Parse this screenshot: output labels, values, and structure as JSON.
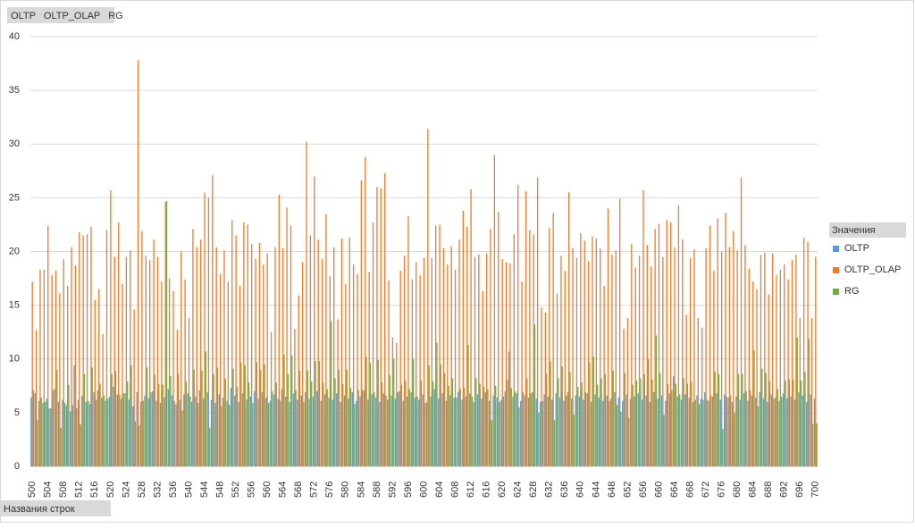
{
  "chart_data": {
    "type": "bar",
    "field_buttons": "OLTP   OLTP_OLAP   RG",
    "legend_title": "Значения",
    "row_label_button": "Названия строк",
    "legend": "right",
    "grid": true,
    "ylim": [
      0,
      40
    ],
    "yticks": [
      0,
      5,
      10,
      15,
      20,
      25,
      30,
      35,
      40
    ],
    "categories": [
      "500",
      null,
      null,
      null,
      "504",
      null,
      null,
      null,
      "508",
      null,
      null,
      null,
      "512",
      null,
      null,
      null,
      "516",
      null,
      null,
      null,
      "520",
      null,
      null,
      null,
      "524",
      null,
      null,
      null,
      "528",
      null,
      null,
      null,
      "532",
      null,
      null,
      null,
      "536",
      null,
      null,
      null,
      "540",
      null,
      null,
      null,
      "544",
      null,
      null,
      null,
      "548",
      null,
      null,
      null,
      "552",
      null,
      null,
      null,
      "556",
      null,
      null,
      null,
      "560",
      null,
      null,
      null,
      "564",
      null,
      null,
      null,
      "568",
      null,
      null,
      null,
      "572",
      null,
      null,
      null,
      "576",
      null,
      null,
      null,
      "580",
      null,
      null,
      null,
      "584",
      null,
      null,
      null,
      "588",
      null,
      null,
      null,
      "592",
      null,
      null,
      null,
      "596",
      null,
      null,
      null,
      "600",
      null,
      null,
      null,
      "604",
      null,
      null,
      null,
      "608",
      null,
      null,
      null,
      "612",
      null,
      null,
      null,
      "616",
      null,
      null,
      null,
      "620",
      null,
      null,
      null,
      "624",
      null,
      null,
      null,
      "628",
      null,
      null,
      null,
      "632",
      null,
      null,
      null,
      "636",
      null,
      null,
      null,
      "640",
      null,
      null,
      null,
      "644",
      null,
      null,
      null,
      "648",
      null,
      null,
      null,
      "652",
      null,
      null,
      null,
      "656",
      null,
      null,
      null,
      "660",
      null,
      null,
      null,
      "664",
      null,
      null,
      null,
      "668",
      null,
      null,
      null,
      "672",
      null,
      null,
      null,
      "676",
      null,
      null,
      null,
      "680",
      null,
      null,
      null,
      "684",
      null,
      null,
      null,
      "688",
      null,
      null,
      null,
      "692",
      null,
      null,
      null,
      "696",
      null,
      null,
      null,
      "700"
    ],
    "series": [
      {
        "name": "OLTP",
        "color": "#5b9bd5",
        "values": [
          6.4,
          6.8,
          6.1,
          5.9,
          6.3,
          5.4,
          7.2,
          6.0,
          6.2,
          5.7,
          5.1,
          9.4,
          6.2,
          6.6,
          6.0,
          5.8,
          6.9,
          7.1,
          6.4,
          6.1,
          6.5,
          7.4,
          6.7,
          6.3,
          6.8,
          6.2,
          5.6,
          6.9,
          6.0,
          6.6,
          6.3,
          7.0,
          6.1,
          5.9,
          6.4,
          7.2,
          6.6,
          5.8,
          6.2,
          6.7,
          6.8,
          6.0,
          6.5,
          7.1,
          6.3,
          6.9,
          6.2,
          5.9,
          6.7,
          6.4,
          6.1,
          7.3,
          6.6,
          6.0,
          6.8,
          6.2,
          6.5,
          7.0,
          6.3,
          6.9,
          6.4,
          6.1,
          6.7,
          6.3,
          7.2,
          6.5,
          6.0,
          6.8,
          6.2,
          6.6,
          6.9,
          6.3,
          6.5,
          7.0,
          6.1,
          6.7,
          6.4,
          6.2,
          6.8,
          6.0,
          6.6,
          6.3,
          6.9,
          6.1,
          6.5,
          7.1,
          6.2,
          6.7,
          6.4,
          6.0,
          6.8,
          6.2,
          6.6,
          6.3,
          7.0,
          6.1,
          6.5,
          6.9,
          6.4,
          6.2,
          6.7,
          6.0,
          6.5,
          7.2,
          6.3,
          6.8,
          6.1,
          6.6,
          6.4,
          6.9,
          6.2,
          6.5,
          6.8,
          6.0,
          6.7,
          6.3,
          6.9,
          6.1,
          6.6,
          6.4,
          6.2,
          7.0,
          10.7,
          6.5,
          6.8,
          6.1,
          6.6,
          6.4,
          6.9,
          6.3,
          6.0,
          6.7,
          6.5,
          6.2,
          6.8,
          6.4,
          6.1,
          6.9,
          6.3,
          6.6,
          6.5,
          6.2,
          6.8,
          6.0,
          6.7,
          6.4,
          6.1,
          6.6,
          6.3,
          6.9,
          6.4,
          6.1,
          6.7,
          6.3,
          6.5,
          6.8,
          6.2,
          6.6,
          6.0,
          6.9,
          6.3,
          6.6,
          6.1,
          6.8,
          8.4,
          6.5,
          6.2,
          6.7,
          6.4,
          6.0,
          6.6,
          6.3,
          6.9,
          6.1,
          6.5,
          6.8,
          6.2,
          6.7,
          6.4,
          6.0,
          6.5,
          6.2,
          6.8,
          6.1,
          6.6,
          6.4,
          6.9,
          6.3,
          6.0,
          6.7,
          6.4,
          6.1,
          6.8,
          6.3,
          6.5,
          6.2,
          6.9,
          6.6,
          6.0,
          6.7,
          6.3
        ]
      },
      {
        "name": "OLTP_OLAP",
        "color": "#ed7d31",
        "values": [
          17.2,
          12.7,
          18.3,
          18.3,
          22.4,
          17.8,
          18.2,
          16.1,
          19.3,
          16.8,
          20.4,
          18.7,
          21.8,
          21.5,
          21.6,
          22.3,
          15.5,
          16.5,
          12.3,
          22.0,
          25.7,
          19.5,
          22.7,
          17.0,
          19.5,
          20.1,
          14.6,
          37.8,
          21.9,
          19.6,
          19.2,
          21.1,
          19.5,
          17.2,
          24.6,
          17.5,
          16.3,
          12.7,
          20.0,
          17.4,
          13.8,
          22.1,
          20.4,
          21.1,
          25.5,
          25.0,
          27.1,
          20.4,
          17.9,
          20.1,
          17.2,
          22.9,
          21.5,
          16.8,
          22.7,
          22.5,
          20.7,
          19.3,
          20.8,
          18.8,
          19.8,
          12.5,
          20.4,
          25.3,
          20.3,
          24.1,
          22.4,
          12.8,
          15.9,
          19.0,
          30.2,
          21.5,
          27.0,
          21.1,
          19.3,
          23.5,
          17.7,
          20.4,
          13.7,
          21.2,
          17.0,
          21.3,
          18.8,
          17.9,
          26.6,
          28.8,
          18.1,
          22.7,
          26.0,
          25.9,
          27.3,
          17.3,
          12.0,
          11.5,
          18.2,
          19.6,
          23.3,
          17.4,
          19.0,
          17.8,
          19.4,
          31.4,
          19.4,
          22.4,
          22.5,
          20.3,
          18.8,
          20.5,
          18.3,
          21.1,
          23.8,
          22.3,
          25.8,
          19.5,
          19.7,
          16.3,
          19.8,
          22.1,
          29.0,
          23.7,
          19.3,
          19.0,
          18.9,
          21.6,
          26.2,
          17.2,
          25.6,
          22.0,
          21.6,
          26.9,
          14.8,
          14.3,
          22.2,
          23.6,
          16.1,
          19.6,
          18.2,
          25.5,
          20.3,
          19.4,
          21.7,
          21.0,
          19.1,
          21.4,
          21.2,
          20.3,
          16.8,
          24.0,
          19.7,
          20.1,
          24.9,
          12.8,
          13.8,
          20.7,
          18.5,
          19.6,
          25.7,
          20.6,
          18.6,
          22.1,
          22.6,
          19.5,
          22.9,
          22.7,
          20.4,
          24.3,
          21.1,
          14.1,
          19.4,
          20.2,
          13.8,
          12.9,
          20.3,
          22.4,
          18.2,
          23.1,
          20.0,
          23.6,
          20.4,
          21.9,
          20.1,
          26.9,
          20.6,
          18.4,
          17.2,
          16.5,
          19.7,
          19.9,
          16.0,
          19.8,
          17.8,
          18.3,
          18.8,
          17.4,
          19.2,
          19.7,
          13.8,
          21.3,
          20.9,
          13.8,
          19.5
        ]
      },
      {
        "name": "RG",
        "color": "#70ad47",
        "values": [
          7.1,
          4.3,
          6.4,
          6.0,
          5.4,
          7.1,
          9.0,
          3.6,
          5.9,
          7.6,
          5.7,
          5.4,
          3.9,
          8.6,
          6.1,
          9.2,
          6.2,
          7.7,
          6.6,
          6.3,
          8.6,
          8.9,
          6.7,
          6.8,
          7.9,
          9.4,
          4.2,
          3.8,
          6.1,
          9.2,
          6.9,
          8.5,
          7.7,
          7.6,
          24.7,
          8.4,
          6.1,
          8.6,
          5.2,
          7.9,
          6.5,
          9.0,
          5.9,
          8.9,
          10.7,
          3.6,
          8.6,
          9.2,
          5.6,
          8.2,
          5.7,
          9.1,
          7.4,
          9.7,
          9.4,
          7.8,
          5.9,
          9.7,
          9.0,
          9.5,
          5.9,
          7.0,
          7.8,
          6.1,
          10.4,
          8.6,
          10.3,
          7.1,
          8.9,
          6.0,
          8.9,
          7.9,
          9.8,
          9.8,
          7.8,
          7.2,
          13.5,
          8.2,
          9.0,
          7.7,
          9.0,
          7.3,
          5.8,
          7.1,
          7.1,
          10.2,
          9.6,
          6.9,
          9.9,
          7.8,
          6.6,
          8.5,
          10.0,
          6.9,
          7.6,
          8.0,
          7.2,
          10.0,
          6.5,
          8.0,
          5.9,
          9.4,
          7.9,
          11.5,
          9.5,
          8.7,
          7.5,
          8.2,
          6.4,
          7.2,
          7.3,
          11.3,
          6.5,
          8.2,
          7.7,
          7.4,
          7.2,
          4.3,
          7.5,
          6.0,
          6.5,
          8.1,
          7.3,
          7.0,
          5.5,
          6.9,
          8.2,
          6.8,
          13.2,
          5.0,
          6.1,
          8.6,
          9.8,
          4.3,
          8.2,
          9.3,
          6.6,
          8.8,
          4.8,
          7.4,
          7.8,
          6.9,
          9.7,
          10.2,
          7.6,
          8.2,
          8.6,
          6.1,
          8.9,
          5.7,
          5.1,
          8.7,
          4.5,
          7.6,
          8.0,
          8.2,
          8.6,
          10.0,
          8.1,
          12.2,
          8.7,
          4.8,
          7.7,
          7.1,
          7.7,
          6.7,
          8.2,
          7.7,
          7.9,
          6.2,
          5.8,
          6.2,
          6.2,
          6.6,
          8.8,
          8.6,
          3.5,
          6.5,
          6.6,
          5.0,
          8.6,
          8.6,
          7.0,
          7.1,
          10.8,
          5.6,
          9.1,
          8.7,
          7.9,
          6.3,
          7.2,
          6.5,
          8.0,
          8.1,
          8.1,
          12.0,
          8.0,
          8.8,
          11.9,
          4.0,
          4.0
        ]
      }
    ]
  }
}
